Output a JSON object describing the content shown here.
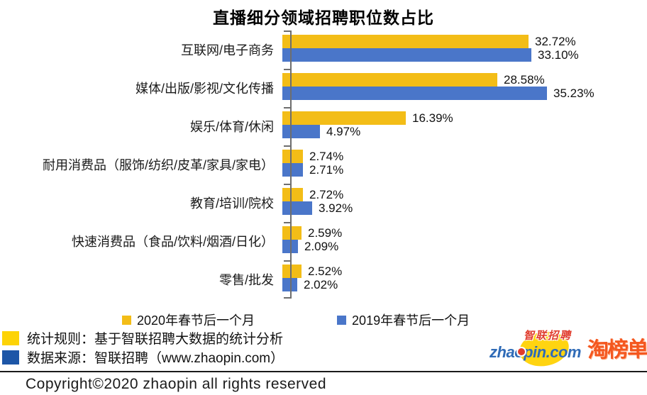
{
  "title": "直播细分领域招聘职位数占比",
  "chart_data": {
    "type": "bar",
    "orientation": "horizontal",
    "title": "直播细分领域招聘职位数占比",
    "categories": [
      "互联网/电子商务",
      "媒体/出版/影视/文化传播",
      "娱乐/体育/休闲",
      "耐用消费品（服饰/纺织/皮革/家具/家电）",
      "教育/培训/院校",
      "快速消费品（食品/饮料/烟酒/日化）",
      "零售/批发"
    ],
    "series": [
      {
        "name": "2020年春节后一个月",
        "color": "#f3bd17",
        "values": [
          32.72,
          28.58,
          16.39,
          2.74,
          2.72,
          2.59,
          2.52
        ]
      },
      {
        "name": "2019年春节后一个月",
        "color": "#4a76c9",
        "values": [
          33.1,
          35.23,
          4.97,
          2.71,
          3.92,
          2.09,
          2.02
        ]
      }
    ],
    "value_label_format": "0.00%",
    "xlim": [
      0,
      36
    ],
    "grid": false,
    "legend_position": "bottom"
  },
  "legend": [
    {
      "label": "2020年春节后一个月",
      "color": "#f3bd17"
    },
    {
      "label": "2019年春节后一个月",
      "color": "#4a76c9"
    }
  ],
  "notes": [
    {
      "color": "#fdd306",
      "text": "统计规则：基于智联招聘大数据的统计分析"
    },
    {
      "color": "#1d56a7",
      "text": "数据来源：智联招聘（www.zhaopin.com）"
    }
  ],
  "logos": {
    "zhaopin_cn": "智联招聘",
    "zhaopin_en": "zhaopin.com",
    "taobangdan": "淘榜单"
  },
  "footer": {
    "copyright": "Copyright©2020 zhaopin all rights reserved"
  }
}
